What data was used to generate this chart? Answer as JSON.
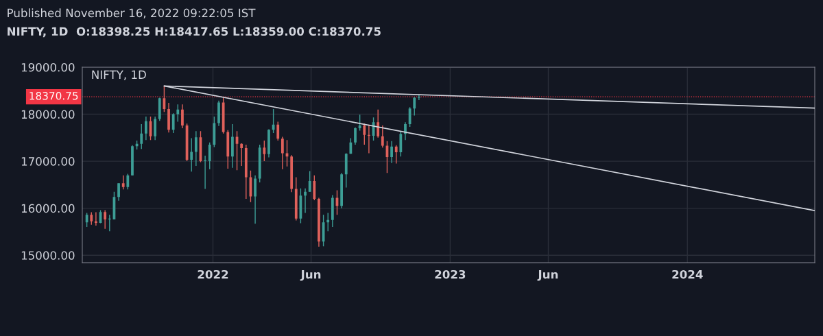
{
  "chart_data": {
    "type": "candlestick",
    "title": "Published November 16, 2022 09:22:05 IST",
    "subtitle": "NIFTY, 1D  O:18398.25 H:18417.65 L:18359.00 C:18370.75",
    "annotations": [
      "NIFTY, 1D"
    ],
    "x": [
      "2021-06-21",
      "2021-06-28",
      "2021-07-05",
      "2021-07-12",
      "2021-07-19",
      "2021-07-26",
      "2021-08-02",
      "2021-08-09",
      "2021-08-16",
      "2021-08-23",
      "2021-08-30",
      "2021-09-06",
      "2021-09-13",
      "2021-09-20",
      "2021-09-27",
      "2021-10-04",
      "2021-10-11",
      "2021-10-18",
      "2021-10-25",
      "2021-11-01",
      "2021-11-08",
      "2021-11-15",
      "2021-11-22",
      "2021-11-29",
      "2021-12-06",
      "2021-12-13",
      "2021-12-20",
      "2021-12-27",
      "2022-01-03",
      "2022-01-10",
      "2022-01-17",
      "2022-01-24",
      "2022-01-31",
      "2022-02-07",
      "2022-02-14",
      "2022-02-21",
      "2022-02-28",
      "2022-03-07",
      "2022-03-14",
      "2022-03-21",
      "2022-03-28",
      "2022-04-04",
      "2022-04-11",
      "2022-04-18",
      "2022-04-25",
      "2022-05-02",
      "2022-05-09",
      "2022-05-16",
      "2022-05-23",
      "2022-05-30",
      "2022-06-06",
      "2022-06-13",
      "2022-06-20",
      "2022-06-27",
      "2022-07-04",
      "2022-07-11",
      "2022-07-18",
      "2022-07-25",
      "2022-08-01",
      "2022-08-08",
      "2022-08-15",
      "2022-08-22",
      "2022-08-29",
      "2022-09-05",
      "2022-09-12",
      "2022-09-19",
      "2022-09-26",
      "2022-10-03",
      "2022-10-10",
      "2022-10-17",
      "2022-10-24",
      "2022-10-31",
      "2022-11-07",
      "2022-11-14"
    ],
    "ohlc": [
      [
        15700,
        15900,
        15600,
        15860
      ],
      [
        15860,
        15915,
        15650,
        15720
      ],
      [
        15720,
        15915,
        15630,
        15690
      ],
      [
        15690,
        15960,
        15680,
        15920
      ],
      [
        15920,
        15960,
        15560,
        15760
      ],
      [
        15760,
        15860,
        15510,
        15780
      ],
      [
        15760,
        16350,
        15760,
        16240
      ],
      [
        16240,
        16530,
        16160,
        16530
      ],
      [
        16530,
        16700,
        16400,
        16450
      ],
      [
        16450,
        16730,
        16400,
        16700
      ],
      [
        16700,
        17340,
        16700,
        17320
      ],
      [
        17320,
        17440,
        17250,
        17370
      ],
      [
        17370,
        17790,
        17260,
        17590
      ],
      [
        17590,
        17950,
        17450,
        17850
      ],
      [
        17850,
        17950,
        17450,
        17530
      ],
      [
        17530,
        17950,
        17450,
        17900
      ],
      [
        17900,
        18350,
        17860,
        18340
      ],
      [
        18340,
        18604,
        18050,
        18110
      ],
      [
        18110,
        18240,
        17610,
        17670
      ],
      [
        17670,
        18020,
        17600,
        18000
      ],
      [
        18000,
        18210,
        17840,
        18100
      ],
      [
        18100,
        18210,
        17700,
        17760
      ],
      [
        17760,
        17800,
        17000,
        17030
      ],
      [
        17030,
        17490,
        16780,
        17200
      ],
      [
        17200,
        17640,
        16900,
        17510
      ],
      [
        17510,
        17640,
        16980,
        17000
      ],
      [
        17000,
        17120,
        16410,
        17020
      ],
      [
        17000,
        17400,
        16830,
        17350
      ],
      [
        17350,
        17950,
        17300,
        17810
      ],
      [
        17810,
        18290,
        17750,
        18250
      ],
      [
        18250,
        18350,
        17590,
        17620
      ],
      [
        17620,
        17660,
        16840,
        17100
      ],
      [
        17100,
        17790,
        16860,
        17520
      ],
      [
        17520,
        17640,
        16810,
        17370
      ],
      [
        17370,
        17380,
        16900,
        17280
      ],
      [
        17280,
        17350,
        16200,
        16660
      ],
      [
        16660,
        16800,
        16130,
        16250
      ],
      [
        16250,
        16700,
        15670,
        16630
      ],
      [
        16630,
        17350,
        16550,
        17290
      ],
      [
        17290,
        17440,
        17000,
        17150
      ],
      [
        17150,
        17680,
        17080,
        17670
      ],
      [
        17670,
        18110,
        17600,
        17780
      ],
      [
        17780,
        17840,
        17440,
        17480
      ],
      [
        17480,
        17520,
        16830,
        17170
      ],
      [
        17170,
        17450,
        16890,
        17100
      ],
      [
        17100,
        17130,
        16340,
        16410
      ],
      [
        16410,
        16660,
        15740,
        15780
      ],
      [
        15780,
        16420,
        15680,
        16270
      ],
      [
        16270,
        16420,
        15900,
        16350
      ],
      [
        16350,
        16790,
        16350,
        16580
      ],
      [
        16580,
        16700,
        16170,
        16200
      ],
      [
        16200,
        16220,
        15180,
        15290
      ],
      [
        15290,
        15860,
        15190,
        15700
      ],
      [
        15700,
        15900,
        15510,
        15750
      ],
      [
        15750,
        16280,
        15600,
        16220
      ],
      [
        16220,
        16380,
        15860,
        16050
      ],
      [
        16050,
        16750,
        16000,
        16720
      ],
      [
        16720,
        17170,
        16440,
        17160
      ],
      [
        17160,
        17490,
        17160,
        17400
      ],
      [
        17400,
        17720,
        17350,
        17700
      ],
      [
        17700,
        17990,
        17650,
        17760
      ],
      [
        17760,
        17800,
        17350,
        17560
      ],
      [
        17560,
        17780,
        17170,
        17540
      ],
      [
        17540,
        17930,
        17440,
        17830
      ],
      [
        17830,
        18100,
        17500,
        17530
      ],
      [
        17530,
        17760,
        17290,
        17330
      ],
      [
        17330,
        17430,
        16750,
        17090
      ],
      [
        17090,
        17430,
        16960,
        17310
      ],
      [
        17310,
        17340,
        16950,
        17190
      ],
      [
        17190,
        17640,
        17100,
        17580
      ],
      [
        17580,
        17830,
        17450,
        17790
      ],
      [
        17790,
        18150,
        17730,
        18120
      ],
      [
        18120,
        18360,
        17970,
        18350
      ],
      [
        18350,
        18420,
        18300,
        18370.75
      ]
    ],
    "colors": [
      "#3d9e96",
      "#e0615b",
      "#e0615b",
      "#3d9e96",
      "#e0615b",
      "#3d9e96",
      "#3d9e96",
      "#3d9e96",
      "#e0615b",
      "#3d9e96",
      "#3d9e96",
      "#3d9e96",
      "#3d9e96",
      "#3d9e96",
      "#e0615b",
      "#3d9e96",
      "#3d9e96",
      "#e0615b",
      "#e0615b",
      "#3d9e96",
      "#3d9e96",
      "#e0615b",
      "#e0615b",
      "#3d9e96",
      "#3d9e96",
      "#e0615b",
      "#3d9e96",
      "#3d9e96",
      "#3d9e96",
      "#3d9e96",
      "#e0615b",
      "#e0615b",
      "#3d9e96",
      "#e0615b",
      "#e0615b",
      "#e0615b",
      "#e0615b",
      "#3d9e96",
      "#3d9e96",
      "#e0615b",
      "#3d9e96",
      "#3d9e96",
      "#e0615b",
      "#e0615b",
      "#e0615b",
      "#e0615b",
      "#e0615b",
      "#3d9e96",
      "#3d9e96",
      "#3d9e96",
      "#e0615b",
      "#e0615b",
      "#3d9e96",
      "#3d9e96",
      "#3d9e96",
      "#e0615b",
      "#3d9e96",
      "#3d9e96",
      "#3d9e96",
      "#3d9e96",
      "#3d9e96",
      "#e0615b",
      "#e0615b",
      "#3d9e96",
      "#e0615b",
      "#e0615b",
      "#e0615b",
      "#3d9e96",
      "#e0615b",
      "#3d9e96",
      "#3d9e96",
      "#3d9e96",
      "#3d9e96",
      "#3d9e96"
    ],
    "series": [
      {
        "type": "line",
        "color": "#d1d4dc",
        "x": [
          "2021-10-18",
          "2024-07-15"
        ],
        "values": [
          18600,
          18130
        ]
      },
      {
        "type": "line",
        "color": "#d1d4dc",
        "x": [
          "2021-10-18",
          "2024-07-15"
        ],
        "values": [
          18600,
          15950
        ]
      }
    ],
    "ref_lines": [
      {
        "axis": "y",
        "value": 18370.75,
        "label": "18370.75",
        "color": "#f23645",
        "line_style": "dotted"
      }
    ],
    "xlim": [
      "2021-06-14",
      "2024-07-15"
    ],
    "xticks": [
      {
        "value": "2022-01-01",
        "label": "2022"
      },
      {
        "value": "2022-06-01",
        "label": "Jun"
      },
      {
        "value": "2023-01-01",
        "label": "2023"
      },
      {
        "value": "2023-06-01",
        "label": "Jun"
      },
      {
        "value": "2024-01-01",
        "label": "2024"
      }
    ],
    "ylim": [
      14840,
      19000
    ],
    "yticks": [
      {
        "value": 15000,
        "label": "15000.00"
      },
      {
        "value": 16000,
        "label": "16000.00"
      },
      {
        "value": 17000,
        "label": "17000.00"
      },
      {
        "value": 18000,
        "label": "18000.00"
      },
      {
        "value": 19000,
        "label": "19000.00"
      }
    ],
    "grid": true
  }
}
